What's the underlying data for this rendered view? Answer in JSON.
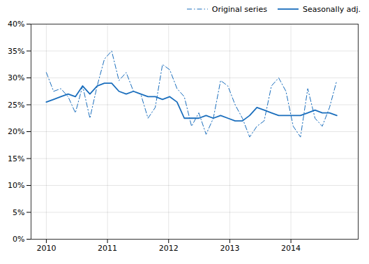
{
  "chart_data": {
    "type": "line",
    "x": [
      2010,
      2010.11875,
      2010.2375,
      2010.35625,
      2010.475,
      2010.59375,
      2010.7125,
      2010.83125,
      2010.95,
      2011.06875,
      2011.1875,
      2011.30625,
      2011.425,
      2011.54375,
      2011.6625,
      2011.78125,
      2011.9,
      2012.01875,
      2012.1375,
      2012.25625,
      2012.375,
      2012.49375,
      2012.6125,
      2012.73125,
      2012.85,
      2012.96875,
      2013.0875,
      2013.20625,
      2013.325,
      2013.44375,
      2013.5625,
      2013.68125,
      2013.8,
      2013.91875,
      2014.0375,
      2014.15625,
      2014.275,
      2014.39375,
      2014.5125,
      2014.63125,
      2014.75
    ],
    "series": [
      {
        "name": "Original series",
        "color": "#1a6ebd",
        "line_style": "dashdot",
        "values": [
          31.0,
          27.5,
          28.0,
          26.5,
          23.5,
          28.5,
          22.5,
          28.5,
          33.5,
          35.0,
          29.5,
          31.0,
          27.5,
          27.0,
          22.5,
          24.5,
          32.5,
          31.5,
          28.0,
          26.5,
          21.0,
          23.5,
          19.5,
          22.5,
          29.5,
          28.5,
          25.0,
          22.5,
          19.0,
          21.0,
          22.0,
          28.5,
          30.0,
          27.5,
          21.0,
          19.0,
          28.0,
          22.5,
          21.0,
          24.5,
          29.5
        ]
      },
      {
        "name": "Seasonally adj.",
        "color": "#1a6ebd",
        "line_style": "solid",
        "values": [
          25.5,
          26.0,
          26.5,
          27.0,
          26.5,
          28.5,
          27.0,
          28.5,
          29.0,
          29.0,
          27.5,
          27.0,
          27.5,
          27.0,
          26.5,
          26.5,
          26.0,
          26.5,
          25.5,
          22.5,
          22.5,
          22.5,
          23.0,
          22.5,
          23.0,
          22.5,
          22.0,
          22.0,
          23.0,
          24.5,
          24.0,
          23.5,
          23.0,
          23.0,
          23.0,
          23.0,
          23.5,
          24.0,
          23.5,
          23.5,
          23.0
        ]
      }
    ],
    "xlim": [
      2009.75,
      2015.1
    ],
    "xticks": [
      2010,
      2011,
      2012,
      2013,
      2014
    ],
    "ylim": [
      0,
      40
    ],
    "yticks": [
      {
        "value": 0,
        "label": "0%"
      },
      {
        "value": 5,
        "label": "5%"
      },
      {
        "value": 10,
        "label": "10%"
      },
      {
        "value": 15,
        "label": "15%"
      },
      {
        "value": 20,
        "label": "20%"
      },
      {
        "value": 25,
        "label": "25%"
      },
      {
        "value": 30,
        "label": "30%"
      },
      {
        "value": 35,
        "label": "35%"
      },
      {
        "value": 40,
        "label": "40%"
      }
    ],
    "grid": true,
    "legend": "upper right"
  }
}
